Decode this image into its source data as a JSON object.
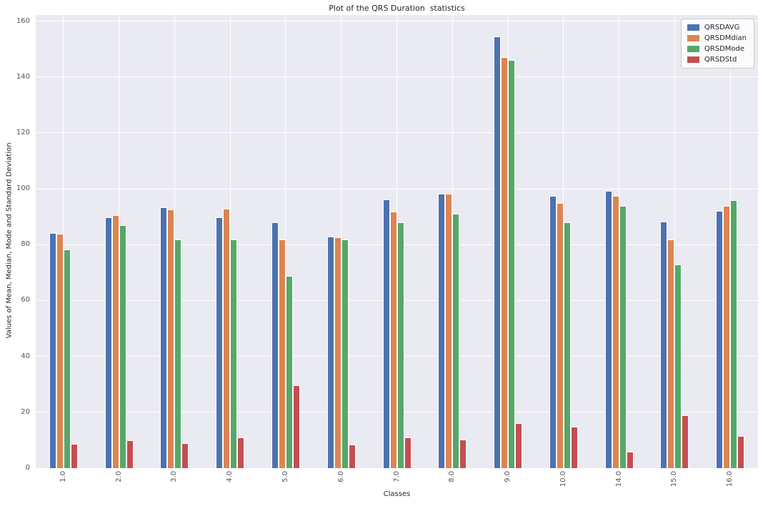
{
  "figure": {
    "title": "Plot of the QRS Duration  statistics",
    "xlabel": "Classes",
    "ylabel": "Values of Mean, Median, Mode and Standard Deviation"
  },
  "chart_data": {
    "type": "bar",
    "title": "Plot of the QRS Duration  statistics",
    "xlabel": "Classes",
    "ylabel": "Values of Mean, Median, Mode and Standard Deviation",
    "categories": [
      "1.0",
      "2.0",
      "3.0",
      "4.0",
      "5.0",
      "6.0",
      "7.0",
      "8.0",
      "9.0",
      "10.0",
      "14.0",
      "15.0",
      "16.0"
    ],
    "series": [
      {
        "name": "QRSDAVG",
        "color": "#4C72B0",
        "values": [
          84.2,
          89.7,
          93.3,
          89.8,
          87.9,
          83.0,
          96.3,
          98.3,
          154.5,
          97.4,
          99.2,
          88.2,
          92.0
        ]
      },
      {
        "name": "QRSDMdian",
        "color": "#DD8452",
        "values": [
          83.9,
          90.6,
          92.6,
          92.9,
          81.8,
          82.7,
          91.8,
          98.2,
          147.0,
          94.8,
          97.5,
          81.8,
          93.9
        ]
      },
      {
        "name": "QRSDMode",
        "color": "#55A868",
        "values": [
          78.4,
          87.0,
          81.8,
          81.8,
          68.8,
          81.8,
          88.0,
          91.0,
          146.0,
          88.0,
          94.0,
          72.8,
          96.0
        ]
      },
      {
        "name": "QRSDStd",
        "color": "#C44E52",
        "values": [
          8.7,
          10.1,
          8.9,
          10.9,
          29.6,
          8.4,
          10.9,
          10.3,
          16.1,
          14.8,
          5.8,
          18.9,
          11.6
        ]
      }
    ],
    "yticks": [
      0,
      20,
      40,
      60,
      80,
      100,
      120,
      140,
      160
    ],
    "ylim": [
      0,
      162.2
    ],
    "grid": true,
    "legend_position": "upper right",
    "plot_background": "#EAEAF2",
    "grid_color": "#FFFFFF"
  }
}
